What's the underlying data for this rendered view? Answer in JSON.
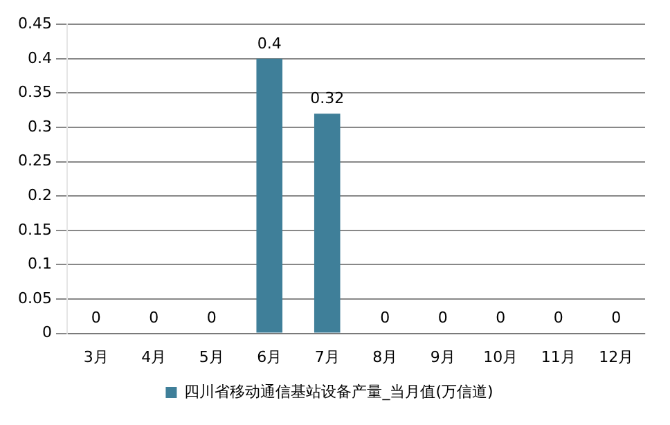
{
  "chart_data": {
    "type": "bar",
    "categories": [
      "3月",
      "4月",
      "5月",
      "6月",
      "7月",
      "8月",
      "9月",
      "10月",
      "11月",
      "12月"
    ],
    "series": [
      {
        "name": "四川省移动通信基站设备产量_当月值(万信道)",
        "color": "#3f7f99",
        "values": [
          0,
          0,
          0,
          0.4,
          0.32,
          0,
          0,
          0,
          0,
          0
        ]
      }
    ],
    "ylim": [
      0,
      0.45
    ],
    "yticks": [
      0,
      0.05,
      0.1,
      0.15,
      0.2,
      0.25,
      0.3,
      0.35,
      0.4,
      0.45
    ],
    "grid": "y",
    "legend": "bottom",
    "data_labels": true
  }
}
